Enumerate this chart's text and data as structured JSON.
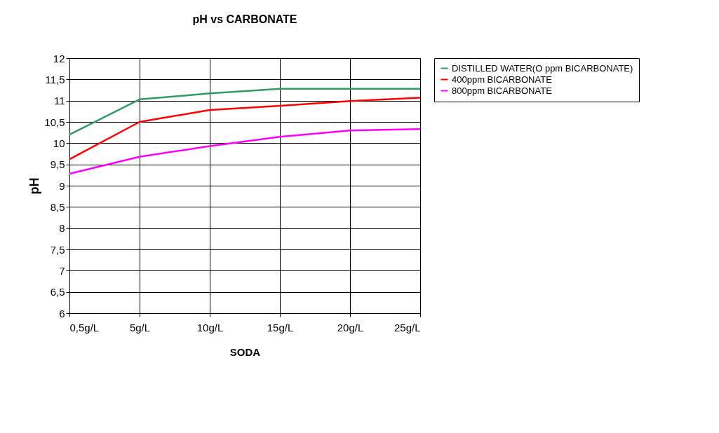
{
  "chart_data": {
    "type": "line",
    "title": "pH vs CARBONATE",
    "xlabel": "SODA",
    "ylabel": "pH",
    "categories": [
      "0,5g/L",
      "5g/L",
      "10g/L",
      "15g/L",
      "20g/L",
      "25g/L"
    ],
    "series": [
      {
        "name": "DISTILLED WATER(O ppm BICARBONATE)",
        "color": "#339966",
        "values": [
          10.2,
          11.03,
          11.17,
          11.28,
          11.28,
          11.28
        ]
      },
      {
        "name": "400ppm BICARBONATE",
        "color": "#ff0000",
        "values": [
          9.62,
          10.5,
          10.78,
          10.88,
          10.99,
          11.07
        ]
      },
      {
        "name": "800ppm BICARBONATE",
        "color": "#ff00ff",
        "values": [
          9.28,
          9.68,
          9.93,
          10.15,
          10.3,
          10.33
        ]
      }
    ],
    "ylim": [
      6,
      12
    ],
    "yticks": [
      6,
      {
        "value": 6.5,
        "label": "6,5"
      },
      7,
      {
        "value": 7.5,
        "label": "7,5"
      },
      8,
      {
        "value": 8.5,
        "label": "8,5"
      },
      9,
      {
        "value": 9.5,
        "label": "9,5"
      },
      10,
      {
        "value": 10.5,
        "label": "10,5"
      },
      11,
      {
        "value": 11.5,
        "label": "11,5"
      },
      12
    ],
    "grid": true,
    "legend": "right",
    "marker": "none",
    "line_style": "solid"
  }
}
